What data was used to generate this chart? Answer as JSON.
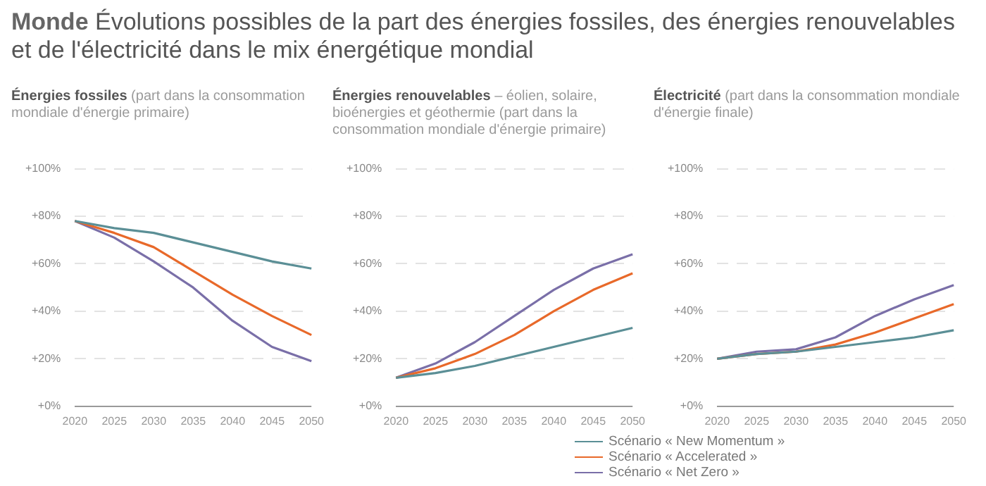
{
  "chart_data": [
    {
      "type": "line",
      "title": "Énergies fossiles",
      "subtitle": "(part dans la consommation mondiale d'énergie primaire)",
      "annotations": [
        "Monde",
        "Évolutions possibles de la part des énergies fossiles, des énergies renouvelables et de l'électricité dans le mix énergétique mondial"
      ],
      "categories": [
        "2020",
        "2025",
        "2030",
        "2035",
        "2040",
        "2045",
        "2050"
      ],
      "series": [
        {
          "color": "#5b8f96",
          "values": [
            78,
            75,
            73,
            69,
            65,
            61,
            58
          ]
        },
        {
          "color": "#e8692a",
          "values": [
            78,
            73,
            67,
            57,
            47,
            38,
            30
          ]
        },
        {
          "color": "#7a6fa8",
          "values": [
            78,
            71,
            61,
            50,
            36,
            25,
            19
          ]
        }
      ],
      "ylim": [
        0,
        100
      ],
      "yticks": [
        {
          "value": 0,
          "label": "+0%"
        },
        {
          "value": 20,
          "label": "+20%"
        },
        {
          "value": 40,
          "label": "+40%"
        },
        {
          "value": 60,
          "label": "+60%"
        },
        {
          "value": 80,
          "label": "+80%"
        },
        {
          "value": 100,
          "label": "+100%"
        }
      ],
      "grid": "y",
      "legend": false,
      "marker": "none",
      "line_style": "solid"
    },
    {
      "type": "line",
      "title": "Énergies renouvelables",
      "subtitle": "– éolien, solaire, bioénergies et géothermie (part dans la consommation mondiale d'énergie primaire)",
      "categories": [
        "2020",
        "2025",
        "2030",
        "2035",
        "2040",
        "2045",
        "2050"
      ],
      "series": [
        {
          "color": "#5b8f96",
          "values": [
            12,
            14,
            17,
            21,
            25,
            29,
            33
          ]
        },
        {
          "color": "#e8692a",
          "values": [
            12,
            16,
            22,
            30,
            40,
            49,
            56
          ]
        },
        {
          "color": "#7a6fa8",
          "values": [
            12,
            18,
            27,
            38,
            49,
            58,
            64
          ]
        }
      ],
      "ylim": [
        0,
        100
      ],
      "yticks": [
        {
          "value": 0,
          "label": "+0%"
        },
        {
          "value": 20,
          "label": "+20%"
        },
        {
          "value": 40,
          "label": "+40%"
        },
        {
          "value": 60,
          "label": "+60%"
        },
        {
          "value": 80,
          "label": "+80%"
        },
        {
          "value": 100,
          "label": "+100%"
        }
      ],
      "grid": "y",
      "legend": false,
      "marker": "none",
      "line_style": "solid"
    },
    {
      "type": "line",
      "title": "Électricité",
      "subtitle": "(part dans la consommation mondiale d'énergie finale)",
      "categories": [
        "2020",
        "2025",
        "2030",
        "2035",
        "2040",
        "2045",
        "2050"
      ],
      "series": [
        {
          "name": "Scénario « New Momentum »",
          "color": "#5b8f96",
          "values": [
            20,
            22,
            23,
            25,
            27,
            29,
            32
          ]
        },
        {
          "name": "Scénario « Accelerated »",
          "color": "#e8692a",
          "values": [
            20,
            22,
            23,
            26,
            31,
            37,
            43
          ]
        },
        {
          "name": "Scénario « Net Zero »",
          "color": "#7a6fa8",
          "values": [
            20,
            23,
            24,
            29,
            38,
            45,
            51
          ]
        }
      ],
      "ylim": [
        0,
        100
      ],
      "yticks": [
        {
          "value": 0,
          "label": "+0%"
        },
        {
          "value": 20,
          "label": "+20%"
        },
        {
          "value": 40,
          "label": "+40%"
        },
        {
          "value": 60,
          "label": "+60%"
        },
        {
          "value": 80,
          "label": "+80%"
        },
        {
          "value": 100,
          "label": "+100%"
        }
      ],
      "grid": "y",
      "legend": "bottom",
      "marker": "none",
      "line_style": "solid"
    }
  ]
}
